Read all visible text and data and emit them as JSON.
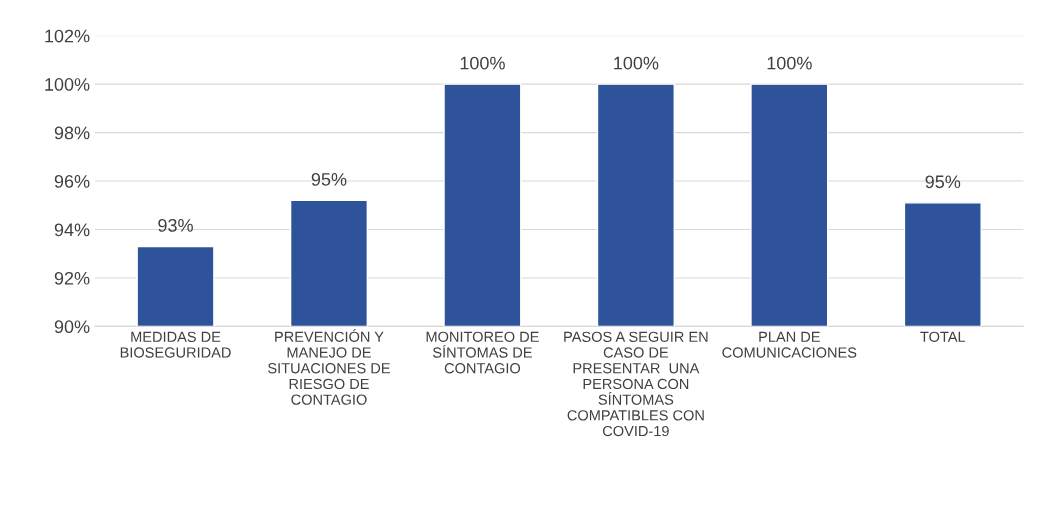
{
  "chart_data": {
    "type": "bar",
    "categories": [
      "MEDIDAS DE\nBIOSEGURIDAD",
      "PREVENCIÓN Y\nMANEJO DE\nSITUACIONES DE\nRIESGO DE\nCONTAGIO",
      "MONITOREO DE\nSÍNTOMAS DE\nCONTAGIO",
      "PASOS A SEGUIR EN\nCASO DE\nPRESENTAR  UNA\nPERSONA CON\nSÍNTOMAS\nCOMPATIBLES CON\nCOVID-19",
      "PLAN DE\nCOMUNICACIONES",
      "TOTAL"
    ],
    "values": [
      93.3,
      95.2,
      100,
      100,
      100,
      95.1
    ],
    "value_labels": [
      "93%",
      "95%",
      "100%",
      "100%",
      "100%",
      "95%"
    ],
    "color": "#2e539a",
    "ylim": [
      90,
      102
    ],
    "yticks": [
      {
        "value": 90,
        "label": "90%"
      },
      {
        "value": 92,
        "label": "92%"
      },
      {
        "value": 94,
        "label": "94%"
      },
      {
        "value": 96,
        "label": "96%"
      },
      {
        "value": 98,
        "label": "98%"
      },
      {
        "value": 100,
        "label": "100%"
      },
      {
        "value": 102,
        "label": "102%"
      }
    ],
    "grid": "y"
  }
}
